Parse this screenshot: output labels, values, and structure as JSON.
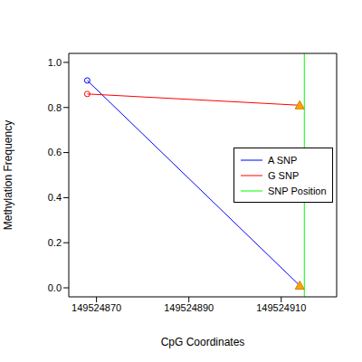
{
  "chart_data": {
    "type": "line",
    "x_label": "CpG Coordinates",
    "y_label": "Methylation Frequency",
    "x": [
      149524868,
      149524914
    ],
    "series": [
      {
        "name": "A SNP",
        "color": "#0000ff",
        "values": [
          0.92,
          0.01
        ]
      },
      {
        "name": "G SNP",
        "color": "#ff0000",
        "values": [
          0.86,
          0.81
        ]
      }
    ],
    "reference_lines": [
      {
        "name": "SNP Position",
        "x": 149524915,
        "color": "#00ff00"
      }
    ],
    "xlim": [
      149524864,
      149524922
    ],
    "xticks": [
      149524870,
      149524890,
      149524910
    ],
    "ylim": [
      -0.04,
      1.04
    ],
    "yticks": [
      {
        "value": 0,
        "label": "0.0"
      },
      0.2,
      0.4,
      0.6,
      0.8,
      {
        "value": 1,
        "label": "1.0"
      }
    ],
    "legend": "right"
  }
}
